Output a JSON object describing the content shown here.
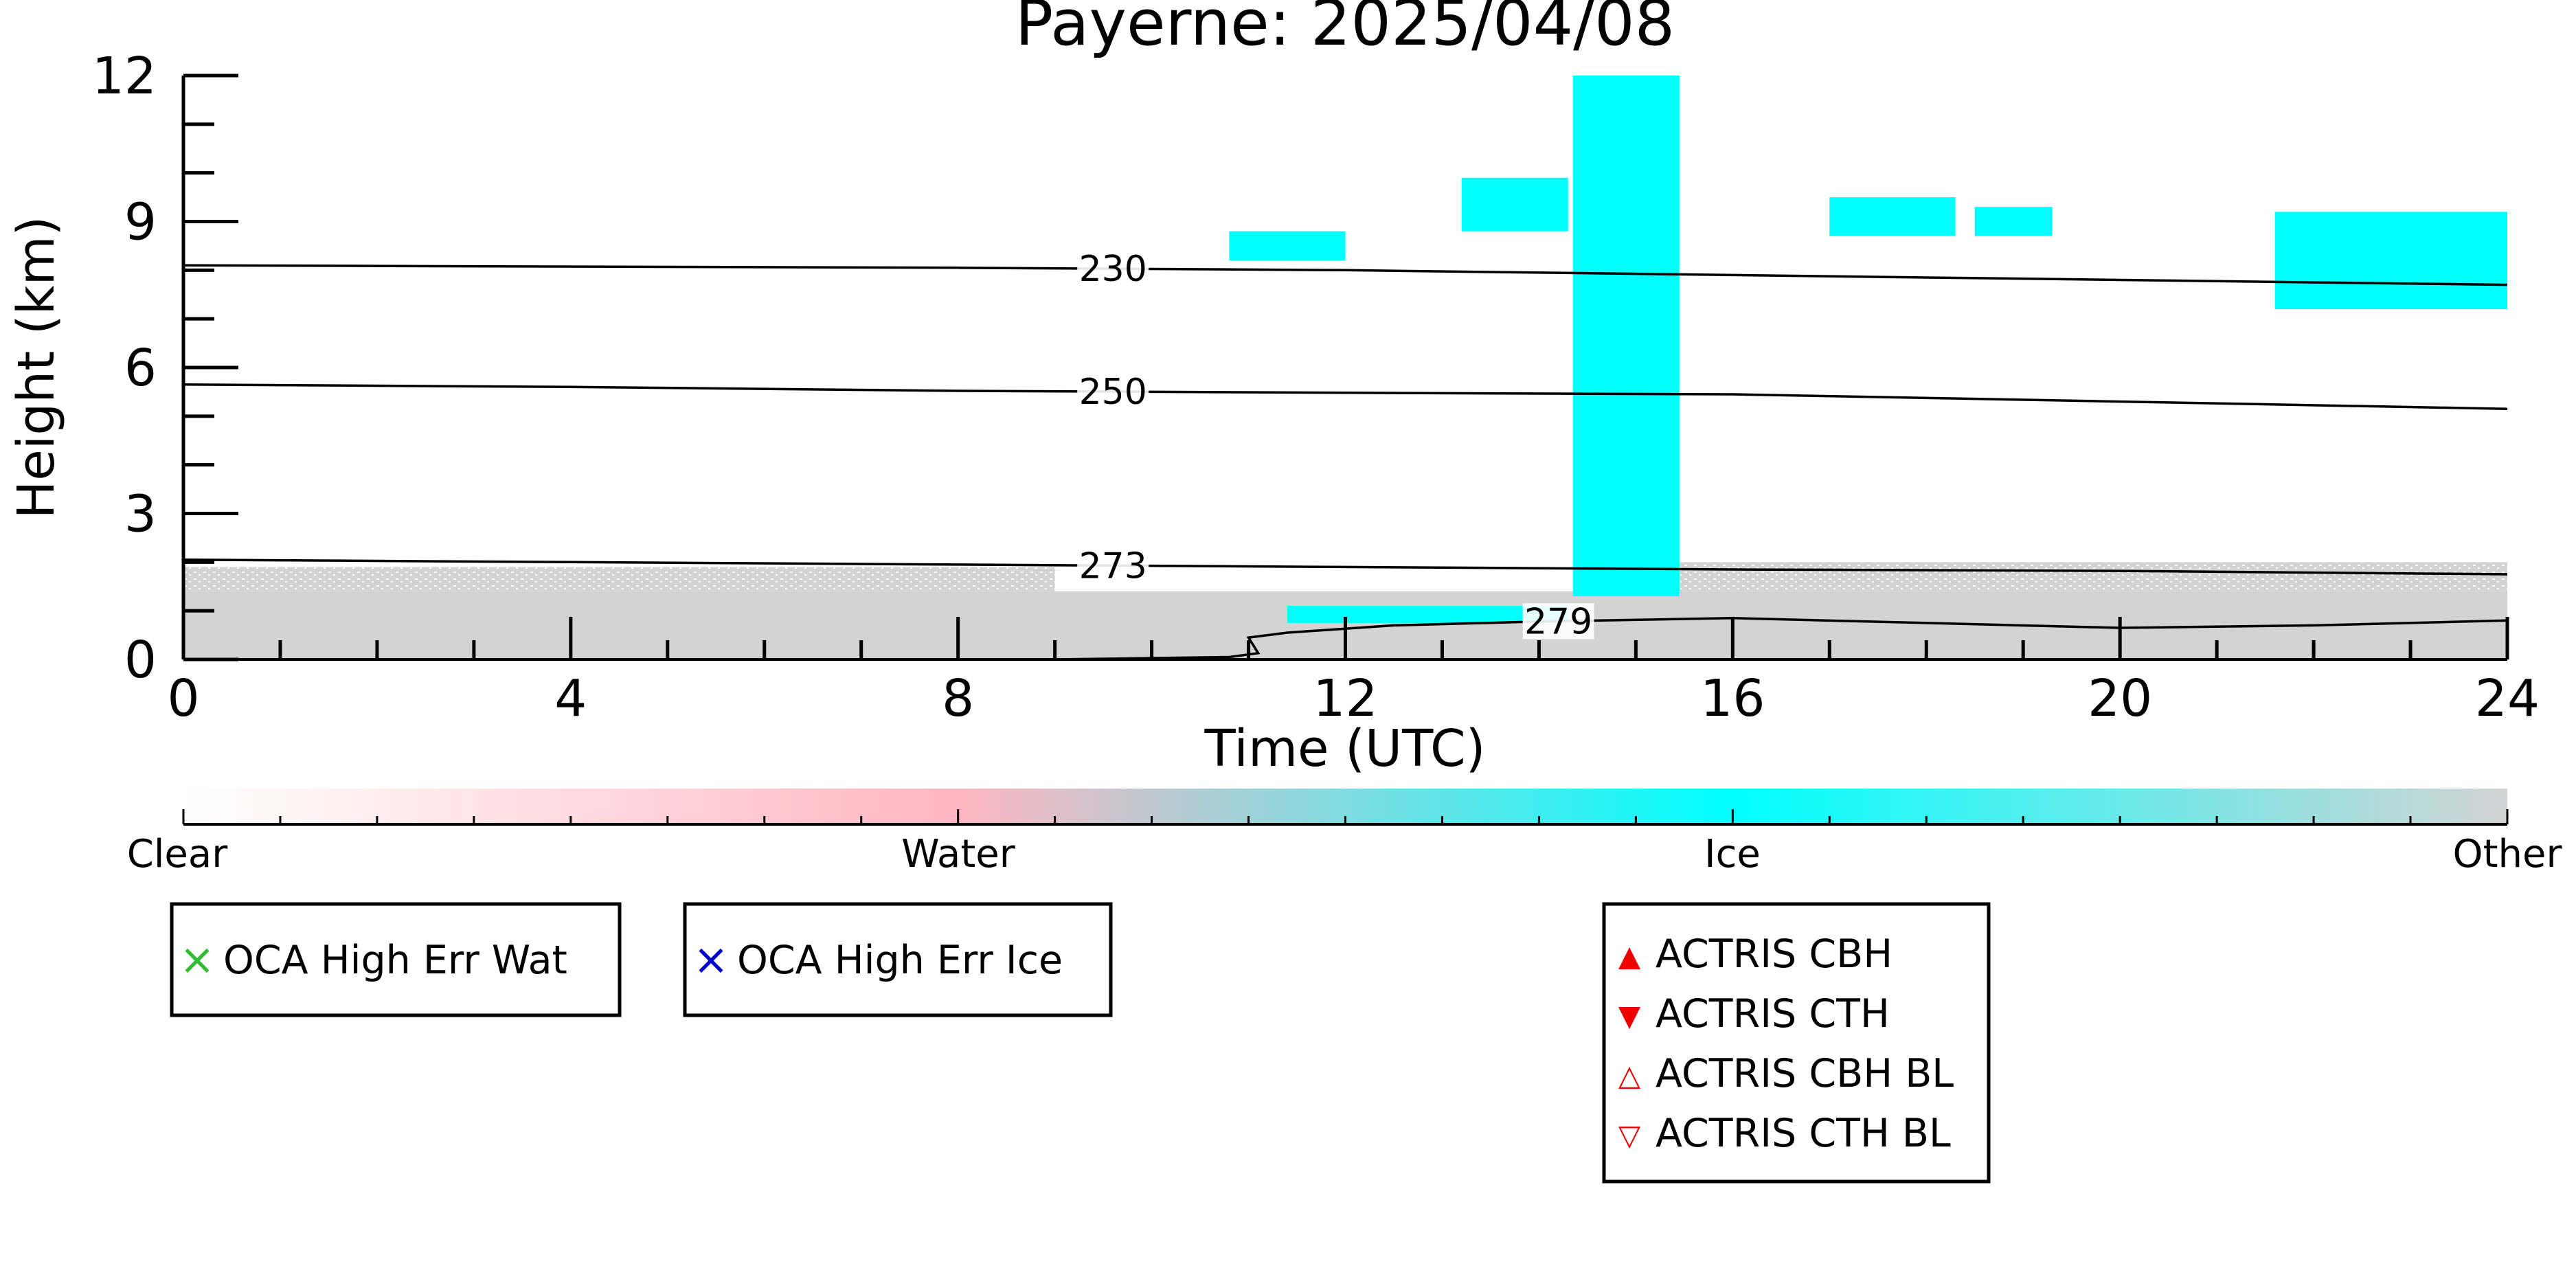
{
  "title": "Payerne: 2025/04/08",
  "chart_data": {
    "type": "heatmap",
    "title": "Payerne: 2025/04/08",
    "xlabel": "Time (UTC)",
    "ylabel": "Height (km)",
    "xlim": [
      0,
      24
    ],
    "ylim": [
      0,
      12
    ],
    "x_ticks": [
      0,
      4,
      8,
      12,
      16,
      20,
      24
    ],
    "y_ticks": [
      0,
      3,
      6,
      9,
      12
    ],
    "x_tick_labels": [
      "0",
      "4",
      "8",
      "12",
      "16",
      "20",
      "24"
    ],
    "y_tick_labels": [
      "0",
      "3",
      "6",
      "9",
      "12"
    ],
    "classes": [
      {
        "name": "Clear",
        "color": "#ffffff"
      },
      {
        "name": "Water",
        "color": "#ffb6c1"
      },
      {
        "name": "Ice",
        "color": "#00ffff"
      },
      {
        "name": "Other",
        "color": "#d3d3d3"
      }
    ],
    "regions": [
      {
        "class": "Other",
        "t": [
          0,
          24
        ],
        "h": [
          0,
          1.4
        ],
        "note": "solid low layer"
      },
      {
        "class": "Other",
        "t": [
          0,
          9.0
        ],
        "h": [
          1.4,
          1.9
        ],
        "note": "speckled"
      },
      {
        "class": "Other",
        "t": [
          15.4,
          24
        ],
        "h": [
          1.4,
          2.0
        ],
        "note": "speckled"
      },
      {
        "class": "Ice",
        "t": [
          14.35,
          15.45
        ],
        "h": [
          1.3,
          12
        ],
        "note": "full column"
      },
      {
        "class": "Ice",
        "t": [
          11.4,
          14.3
        ],
        "h": [
          0.75,
          1.1
        ]
      },
      {
        "class": "Ice",
        "t": [
          10.8,
          12.0
        ],
        "h": [
          8.2,
          8.8
        ]
      },
      {
        "class": "Ice",
        "t": [
          13.2,
          14.3
        ],
        "h": [
          8.8,
          9.9
        ]
      },
      {
        "class": "Ice",
        "t": [
          17.0,
          18.3
        ],
        "h": [
          8.7,
          9.5
        ]
      },
      {
        "class": "Ice",
        "t": [
          18.5,
          19.3
        ],
        "h": [
          8.7,
          9.3
        ]
      },
      {
        "class": "Ice",
        "t": [
          21.6,
          24
        ],
        "h": [
          7.2,
          9.2
        ]
      }
    ],
    "isotherms": [
      {
        "label": "230",
        "label_t": 9.6,
        "points": [
          [
            0,
            8.1
          ],
          [
            8,
            8.05
          ],
          [
            12,
            8.0
          ],
          [
            16,
            7.9
          ],
          [
            20,
            7.8
          ],
          [
            24,
            7.7
          ]
        ]
      },
      {
        "label": "250",
        "label_t": 9.6,
        "points": [
          [
            0,
            5.65
          ],
          [
            4,
            5.6
          ],
          [
            8,
            5.52
          ],
          [
            12,
            5.48
          ],
          [
            16,
            5.45
          ],
          [
            20,
            5.3
          ],
          [
            24,
            5.15
          ]
        ]
      },
      {
        "label": "273",
        "label_t": 9.6,
        "points": [
          [
            0,
            2.05
          ],
          [
            4,
            2.0
          ],
          [
            8,
            1.95
          ],
          [
            12,
            1.9
          ],
          [
            16,
            1.85
          ],
          [
            20,
            1.82
          ],
          [
            24,
            1.75
          ]
        ]
      },
      {
        "label": "279",
        "label_t": 14.2,
        "points": [
          [
            9.0,
            0.0
          ],
          [
            10.8,
            0.05
          ],
          [
            11.1,
            0.13
          ],
          [
            11.0,
            0.45
          ],
          [
            11.4,
            0.55
          ],
          [
            12.5,
            0.7
          ],
          [
            14.0,
            0.78
          ],
          [
            16.0,
            0.85
          ],
          [
            18.0,
            0.75
          ],
          [
            20.0,
            0.65
          ],
          [
            22.0,
            0.7
          ],
          [
            24.0,
            0.8
          ]
        ]
      }
    ]
  },
  "colorbar": {
    "labels": [
      "Clear",
      "Water",
      "Ice",
      "Other"
    ],
    "stops": [
      "#ffffff",
      "#ffb6c1",
      "#00ffff",
      "#d3d3d3"
    ]
  },
  "legends": {
    "oca_water": {
      "label": "OCA High Err Wat",
      "marker": "×",
      "color": "#33bb33"
    },
    "oca_ice": {
      "label": "OCA High Err Ice",
      "marker": "×",
      "color": "#0000cc"
    },
    "actris": [
      {
        "label": "ACTRIS CBH",
        "marker": "▲",
        "color": "#ee0000"
      },
      {
        "label": "ACTRIS CTH",
        "marker": "▼",
        "color": "#ee0000"
      },
      {
        "label": "ACTRIS CBH BL",
        "marker": "△",
        "color": "#ee0000"
      },
      {
        "label": "ACTRIS CTH BL",
        "marker": "▽",
        "color": "#ee0000"
      }
    ]
  }
}
